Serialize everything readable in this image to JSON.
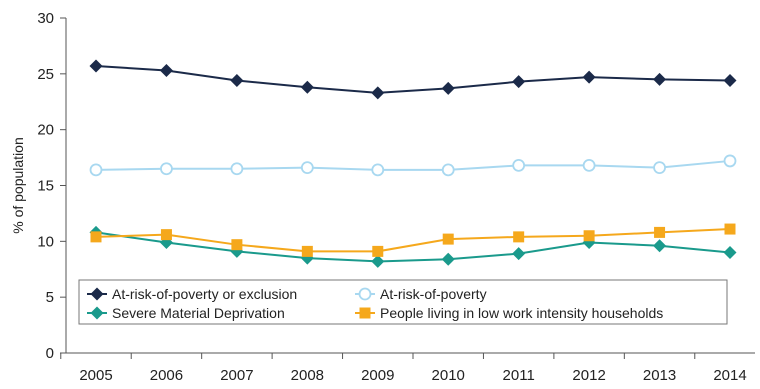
{
  "chart_data": {
    "type": "line",
    "title": "",
    "xlabel": "",
    "ylabel": "% of population",
    "ylim": [
      0,
      30
    ],
    "yticks": [
      "0",
      "5",
      "10",
      "15",
      "20",
      "25",
      "30"
    ],
    "categories": [
      "2005",
      "2006",
      "2007",
      "2008",
      "2009",
      "2010",
      "2011",
      "2012",
      "2013",
      "2014"
    ],
    "grid": false,
    "legend": "bottom-left, inside plot, boxed, two columns",
    "series": [
      {
        "name": "At-risk-of-poverty or exclusion",
        "color": "#1b2a49",
        "marker": "diamond",
        "values": [
          25.7,
          25.3,
          24.4,
          23.8,
          23.3,
          23.7,
          24.3,
          24.7,
          24.5,
          24.4
        ]
      },
      {
        "name": "At-risk-of-poverty",
        "color": "#a8d8f0",
        "marker": "open-circle",
        "values": [
          16.4,
          16.5,
          16.5,
          16.6,
          16.4,
          16.4,
          16.8,
          16.8,
          16.6,
          17.2
        ]
      },
      {
        "name": "Severe Material Deprivation",
        "color": "#1a9a8c",
        "marker": "diamond",
        "values": [
          10.8,
          9.9,
          9.1,
          8.5,
          8.2,
          8.4,
          8.9,
          9.9,
          9.6,
          9.0
        ]
      },
      {
        "name": "People living in low work intensity households",
        "color": "#f5a81c",
        "marker": "square",
        "values": [
          10.4,
          10.6,
          9.7,
          9.1,
          9.1,
          10.2,
          10.4,
          10.5,
          10.8,
          11.1
        ]
      }
    ]
  }
}
